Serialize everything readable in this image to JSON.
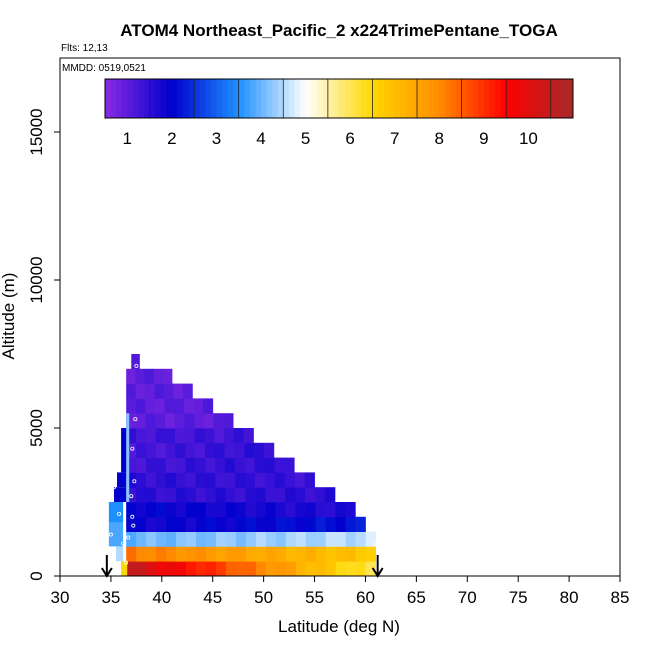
{
  "chart_data": {
    "type": "heatmap",
    "title": "ATOM4 Northeast_Pacific_2 x224TrimePentane_TOGA",
    "flights_text": "Flts: 12,13",
    "dates_text": "MMDD: 0519,0521",
    "xlabel": "Latitude (deg N)",
    "ylabel": "Altitude (m)",
    "xlim": [
      30,
      85
    ],
    "ylim": [
      0,
      17500
    ],
    "xticks": [
      30,
      35,
      40,
      45,
      50,
      55,
      60,
      65,
      70,
      75,
      80,
      85
    ],
    "yticks": [
      0,
      5000,
      10000,
      15000
    ],
    "grid": false,
    "colorbar": {
      "min": 0.5,
      "max": 11,
      "ticks": [
        1,
        2,
        3,
        4,
        5,
        6,
        7,
        8,
        9,
        10
      ],
      "colors": [
        "#8a2be2",
        "#0000cd",
        "#1e90ff",
        "#ffffff",
        "#ffd700",
        "#ff8c00",
        "#ff0000",
        "#a52a2a"
      ]
    },
    "layers": [
      {
        "y0": 0,
        "y1": 500,
        "x0": 36.5,
        "x1": 61,
        "start": 10.5,
        "end": 6.0
      },
      {
        "y0": 500,
        "y1": 1000,
        "x0": 36.5,
        "x1": 61,
        "start": 8.2,
        "end": 6.8
      },
      {
        "y0": 1000,
        "y1": 1500,
        "x0": 36.5,
        "x1": 61,
        "start": 4.0,
        "end": 4.6
      },
      {
        "y0": 1500,
        "y1": 2000,
        "x0": 36.5,
        "x1": 60,
        "start": 1.8,
        "end": 2.2
      },
      {
        "y0": 2000,
        "y1": 2500,
        "x0": 36.5,
        "x1": 59,
        "start": 2.0,
        "end": 1.6
      },
      {
        "y0": 2500,
        "y1": 3000,
        "x0": 36.5,
        "x1": 57,
        "start": 1.5,
        "end": 1.5
      },
      {
        "y0": 3000,
        "y1": 3500,
        "x0": 36.5,
        "x1": 55,
        "start": 1.5,
        "end": 1.4
      },
      {
        "y0": 3500,
        "y1": 4000,
        "x0": 36.5,
        "x1": 53,
        "start": 1.3,
        "end": 1.5
      },
      {
        "y0": 4000,
        "y1": 4500,
        "x0": 36.5,
        "x1": 51,
        "start": 1.2,
        "end": 1.5
      },
      {
        "y0": 4500,
        "y1": 5000,
        "x0": 36.5,
        "x1": 49,
        "start": 1.3,
        "end": 1.3
      },
      {
        "y0": 5000,
        "y1": 5500,
        "x0": 36.5,
        "x1": 47,
        "start": 1.0,
        "end": 1.0
      },
      {
        "y0": 5500,
        "y1": 6000,
        "x0": 36.5,
        "x1": 45,
        "start": 1.0,
        "end": 1.0
      },
      {
        "y0": 6000,
        "y1": 6500,
        "x0": 36.5,
        "x1": 43,
        "start": 1.0,
        "end": 1.0
      },
      {
        "y0": 6500,
        "y1": 7000,
        "x0": 36.5,
        "x1": 41,
        "start": 1.0,
        "end": 1.0
      },
      {
        "y0": 7000,
        "y1": 7500,
        "x0": 37.0,
        "x1": 37.8,
        "start": 1.0,
        "end": 1.0
      }
    ],
    "side_cells": [
      {
        "x0": 36.0,
        "x1": 36.6,
        "y0": 0,
        "y1": 500,
        "v": 6.5
      },
      {
        "x0": 35.5,
        "x1": 36.2,
        "y0": 500,
        "y1": 1000,
        "v": 4.5
      },
      {
        "x0": 34.8,
        "x1": 36.2,
        "y0": 1000,
        "y1": 1800,
        "v": 3.8
      },
      {
        "x0": 34.8,
        "x1": 36.2,
        "y0": 1800,
        "y1": 2500,
        "v": 3.5
      },
      {
        "x0": 35.3,
        "x1": 36.5,
        "y0": 2500,
        "y1": 3000,
        "v": 2.0
      },
      {
        "x0": 35.6,
        "x1": 36.5,
        "y0": 3000,
        "y1": 3500,
        "v": 2.0
      },
      {
        "x0": 36.0,
        "x1": 36.6,
        "y0": 3500,
        "y1": 5000,
        "v": 2.0
      },
      {
        "x0": 36.5,
        "x1": 36.8,
        "y0": 2500,
        "y1": 5500,
        "v": 4.2
      }
    ],
    "sample_points": [
      {
        "lat": 36.7,
        "alt": 1300
      },
      {
        "lat": 37.2,
        "alt": 1700
      },
      {
        "lat": 37.1,
        "alt": 2000
      },
      {
        "lat": 37.0,
        "alt": 2700
      },
      {
        "lat": 37.3,
        "alt": 3200
      },
      {
        "lat": 37.1,
        "alt": 4300
      },
      {
        "lat": 37.4,
        "alt": 5300
      },
      {
        "lat": 37.5,
        "alt": 7100
      },
      {
        "lat": 35.3,
        "alt": 3000
      },
      {
        "lat": 35.8,
        "alt": 2100
      },
      {
        "lat": 35.0,
        "alt": 1400
      },
      {
        "lat": 36.2,
        "alt": 1100
      },
      {
        "lat": 36.5,
        "alt": 450
      },
      {
        "lat": 61.0,
        "alt": 1100
      }
    ],
    "arrows": [
      34.6,
      61.2
    ]
  }
}
